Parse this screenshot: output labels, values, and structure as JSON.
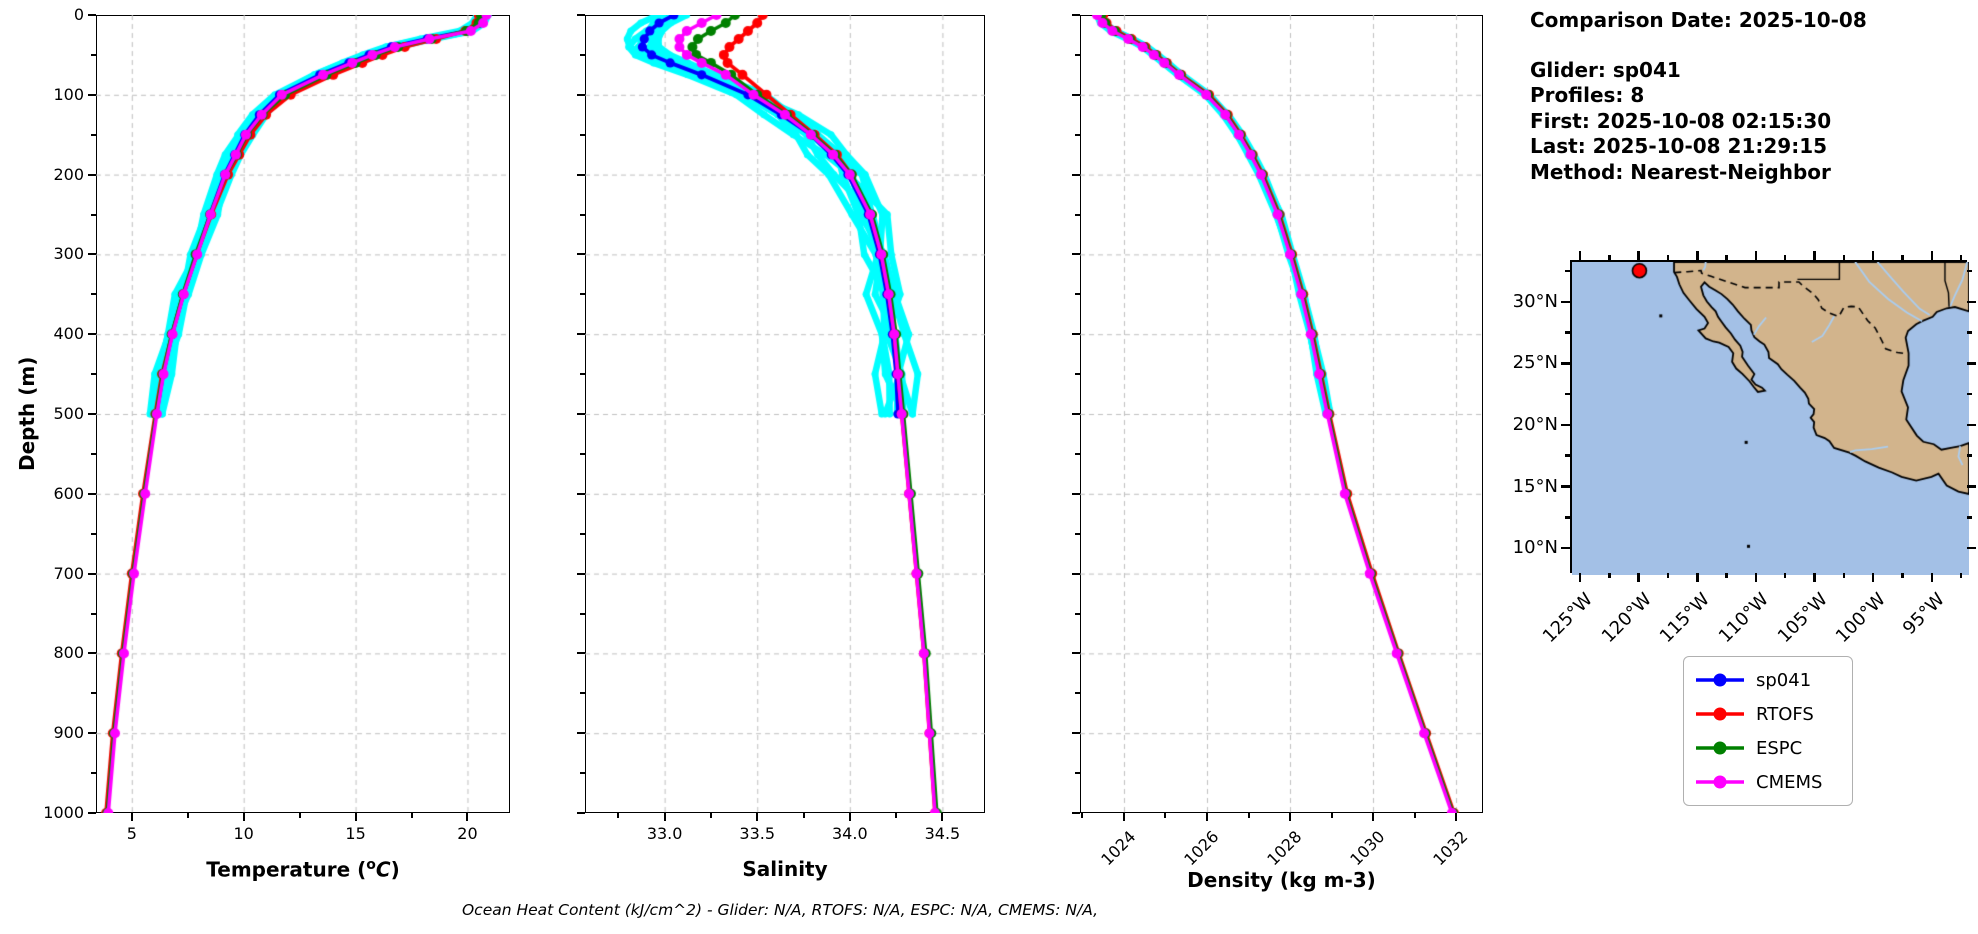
{
  "info": {
    "comparison_date": "Comparison Date: 2025-10-08",
    "glider": "Glider: sp041",
    "profiles": "Profiles: 8",
    "first": "First: 2025-10-08 02:15:30",
    "last": "Last: 2025-10-08 21:29:15",
    "method": "Method: Nearest-Neighbor"
  },
  "footnote": "Ocean Heat Content (kJ/cm^2) - Glider: N/A,  RTOFS: N/A,  ESPC: N/A,  CMEMS: N/A,",
  "legend": {
    "entries": [
      {
        "label": "sp041",
        "color": "#0000ff"
      },
      {
        "label": "RTOFS",
        "color": "#ff0000"
      },
      {
        "label": "ESPC",
        "color": "#008000"
      },
      {
        "label": "CMEMS",
        "color": "#ff00ff"
      }
    ]
  },
  "chart_data": {
    "type": "line",
    "ylabel": "Depth (m)",
    "ylim": [
      0,
      1000
    ],
    "y_inverted": true,
    "depth_ticks": [
      0,
      100,
      200,
      300,
      400,
      500,
      600,
      700,
      800,
      900,
      1000
    ],
    "depth_minor_step": 50,
    "grid": true,
    "raw_profiles": {
      "color": "#00ffff",
      "count": 8,
      "max_depth": 500
    },
    "depths_glider": [
      0,
      10,
      20,
      30,
      40,
      50,
      60,
      75,
      100,
      125,
      150,
      175,
      200,
      250,
      300,
      350,
      400,
      450,
      500
    ],
    "depths_model": [
      0,
      10,
      20,
      30,
      40,
      50,
      60,
      75,
      100,
      125,
      150,
      175,
      200,
      250,
      300,
      350,
      400,
      450,
      500,
      600,
      700,
      800,
      900,
      1000
    ],
    "series_colors": {
      "sp041": "#0000ff",
      "RTOFS": "#ff0000",
      "ESPC": "#008000",
      "CMEMS": "#ff00ff"
    },
    "panels": [
      {
        "key": "temperature",
        "xlabel_parts": {
          "prefix": "Temperature (",
          "sup": "o",
          "italic": "C",
          "suffix": ")"
        },
        "xlabel": "Temperature (°C)",
        "xlim": [
          3.4,
          21.9
        ],
        "xticks": [
          5,
          10,
          15,
          20
        ],
        "xtick_labels": [
          "5",
          "10",
          "15",
          "20"
        ],
        "minor_step": 2.5,
        "rotate_xticklabels": false,
        "series": {
          "sp041": [
            20.7,
            20.55,
            20.0,
            18.2,
            16.6,
            15.6,
            14.7,
            13.4,
            11.6,
            10.7,
            10.05,
            9.6,
            9.15,
            8.5,
            7.9,
            7.3,
            6.8,
            6.4,
            6.1
          ],
          "RTOFS": [
            20.5,
            20.4,
            19.9,
            18.6,
            17.2,
            16.2,
            15.3,
            14.0,
            12.1,
            11.0,
            10.3,
            9.8,
            9.3,
            8.55,
            7.9,
            7.3,
            6.8,
            6.35,
            6.05,
            5.5,
            5.0,
            4.55,
            4.15,
            3.85
          ],
          "ESPC": [
            20.6,
            20.5,
            19.95,
            18.4,
            16.9,
            15.9,
            15.0,
            13.7,
            11.85,
            10.85,
            10.15,
            9.7,
            9.2,
            8.5,
            7.85,
            7.28,
            6.78,
            6.38,
            6.08,
            5.55,
            5.05,
            4.6,
            4.2,
            3.9
          ],
          "CMEMS": [
            20.85,
            20.7,
            20.15,
            18.3,
            16.75,
            15.75,
            14.85,
            13.55,
            11.7,
            10.8,
            10.1,
            9.65,
            9.18,
            8.52,
            7.92,
            7.32,
            6.82,
            6.42,
            6.12,
            5.6,
            5.1,
            4.65,
            4.25,
            3.95
          ]
        }
      },
      {
        "key": "salinity",
        "xlabel": "Salinity",
        "xlim": [
          32.57,
          34.73
        ],
        "xticks": [
          33.0,
          33.5,
          34.0,
          34.5
        ],
        "xtick_labels": [
          "33.0",
          "33.5",
          "34.0",
          "34.5"
        ],
        "minor_step": 0.25,
        "rotate_xticklabels": false,
        "series": {
          "sp041": [
            33.05,
            32.97,
            32.92,
            32.89,
            32.88,
            32.93,
            33.03,
            33.2,
            33.45,
            33.63,
            33.79,
            33.9,
            33.99,
            34.1,
            34.16,
            34.2,
            34.23,
            34.25,
            34.26
          ],
          "RTOFS": [
            33.53,
            33.5,
            33.45,
            33.4,
            33.35,
            33.32,
            33.34,
            33.42,
            33.55,
            33.68,
            33.81,
            33.93,
            34.01,
            34.11,
            34.17,
            34.21,
            34.24,
            34.26,
            34.28,
            34.32,
            34.36,
            34.4,
            34.43,
            34.46
          ],
          "ESPC": [
            33.38,
            33.33,
            33.25,
            33.18,
            33.15,
            33.17,
            33.25,
            33.36,
            33.5,
            33.66,
            33.8,
            33.92,
            34.01,
            34.12,
            34.18,
            34.22,
            34.25,
            34.27,
            34.29,
            34.33,
            34.37,
            34.41,
            34.44,
            34.47
          ],
          "CMEMS": [
            33.28,
            33.2,
            33.12,
            33.08,
            33.08,
            33.12,
            33.2,
            33.33,
            33.48,
            33.65,
            33.79,
            33.91,
            34.0,
            34.11,
            34.17,
            34.21,
            34.24,
            34.26,
            34.28,
            34.32,
            34.36,
            34.4,
            34.43,
            34.46
          ]
        }
      },
      {
        "key": "density",
        "xlabel": "Density (kg m-3)",
        "xlim": [
          1022.94,
          1032.65
        ],
        "xticks": [
          1024,
          1026,
          1028,
          1030,
          1032
        ],
        "xtick_labels": [
          "1024",
          "1026",
          "1028",
          "1030",
          "1032"
        ],
        "minor_step": 1,
        "rotate_xticklabels": true,
        "series": {
          "sp041": [
            1023.4,
            1023.5,
            1023.75,
            1024.15,
            1024.5,
            1024.75,
            1025.0,
            1025.35,
            1026.0,
            1026.45,
            1026.78,
            1027.08,
            1027.32,
            1027.72,
            1028.02,
            1028.3,
            1028.52,
            1028.72,
            1028.92
          ],
          "RTOFS": [
            1023.5,
            1023.58,
            1023.82,
            1024.18,
            1024.52,
            1024.78,
            1025.03,
            1025.38,
            1026.05,
            1026.5,
            1026.82,
            1027.1,
            1027.35,
            1027.75,
            1028.05,
            1028.32,
            1028.55,
            1028.75,
            1028.95,
            1029.38,
            1029.98,
            1030.62,
            1031.28,
            1031.95
          ],
          "ESPC": [
            1023.45,
            1023.55,
            1023.78,
            1024.14,
            1024.48,
            1024.76,
            1025.0,
            1025.36,
            1026.02,
            1026.47,
            1026.8,
            1027.08,
            1027.33,
            1027.73,
            1028.03,
            1028.3,
            1028.53,
            1028.73,
            1028.93,
            1029.35,
            1029.95,
            1030.6,
            1031.26,
            1031.93
          ],
          "CMEMS": [
            1023.35,
            1023.48,
            1023.72,
            1024.1,
            1024.45,
            1024.72,
            1024.97,
            1025.33,
            1025.98,
            1026.44,
            1026.77,
            1027.05,
            1027.3,
            1027.7,
            1028.0,
            1028.27,
            1028.5,
            1028.7,
            1028.9,
            1029.32,
            1029.92,
            1030.57,
            1031.23,
            1031.9
          ]
        }
      }
    ]
  },
  "map": {
    "extent": {
      "lon_min": -125.85,
      "lon_max": -92.0,
      "lat_min": 7.97,
      "lat_max": 33.41
    },
    "xticks": [
      {
        "lon": -125,
        "label": "125°W"
      },
      {
        "lon": -120,
        "label": "120°W"
      },
      {
        "lon": -115,
        "label": "115°W"
      },
      {
        "lon": -110,
        "label": "110°W"
      },
      {
        "lon": -105,
        "label": "105°W"
      },
      {
        "lon": -100,
        "label": "100°W"
      },
      {
        "lon": -95,
        "label": "95°W"
      }
    ],
    "yticks": [
      {
        "lat": 30,
        "label": "30°N"
      },
      {
        "lat": 25,
        "label": "25°N"
      },
      {
        "lat": 20,
        "label": "20°N"
      },
      {
        "lat": 15,
        "label": "15°N"
      },
      {
        "lat": 10,
        "label": "10°N"
      }
    ],
    "land_color": "#d2b48c",
    "ocean_color": "#a3c0e6",
    "river_color": "#aacdf0",
    "glider_location": {
      "lon": -120.1,
      "lat": 32.7,
      "color": "#ff0000"
    },
    "land_polygon": [
      [
        -117.15,
        33.41
      ],
      [
        -92.0,
        33.41
      ],
      [
        -92.0,
        29.4
      ],
      [
        -93.2,
        29.75
      ],
      [
        -93.9,
        29.65
      ],
      [
        -94.75,
        29.35
      ],
      [
        -95.1,
        28.95
      ],
      [
        -96.0,
        28.6
      ],
      [
        -96.5,
        28.35
      ],
      [
        -97.2,
        27.8
      ],
      [
        -97.4,
        27.25
      ],
      [
        -97.15,
        26.0
      ],
      [
        -97.15,
        25.0
      ],
      [
        -97.6,
        23.8
      ],
      [
        -97.75,
        22.9
      ],
      [
        -97.2,
        21.6
      ],
      [
        -97.35,
        20.6
      ],
      [
        -96.45,
        19.3
      ],
      [
        -95.9,
        18.8
      ],
      [
        -95.0,
        18.6
      ],
      [
        -94.35,
        18.15
      ],
      [
        -93.55,
        18.3
      ],
      [
        -92.75,
        18.45
      ],
      [
        -92.0,
        18.7
      ],
      [
        -92.0,
        14.55
      ],
      [
        -92.9,
        14.75
      ],
      [
        -93.9,
        15.25
      ],
      [
        -94.6,
        16.2
      ],
      [
        -95.2,
        15.95
      ],
      [
        -96.5,
        15.65
      ],
      [
        -97.75,
        15.95
      ],
      [
        -98.55,
        16.3
      ],
      [
        -99.7,
        16.7
      ],
      [
        -100.85,
        17.2
      ],
      [
        -101.65,
        17.65
      ],
      [
        -102.2,
        17.92
      ],
      [
        -103.5,
        18.3
      ],
      [
        -103.9,
        18.85
      ],
      [
        -104.3,
        19.1
      ],
      [
        -105.0,
        19.35
      ],
      [
        -105.25,
        19.95
      ],
      [
        -105.2,
        20.4
      ],
      [
        -105.5,
        20.75
      ],
      [
        -105.25,
        21.05
      ],
      [
        -105.2,
        21.45
      ],
      [
        -105.65,
        21.9
      ],
      [
        -105.7,
        22.3
      ],
      [
        -106.0,
        22.8
      ],
      [
        -106.4,
        23.2
      ],
      [
        -106.9,
        23.75
      ],
      [
        -107.5,
        24.25
      ],
      [
        -108.0,
        24.7
      ],
      [
        -108.3,
        25.1
      ],
      [
        -109.05,
        25.6
      ],
      [
        -109.1,
        26.1
      ],
      [
        -109.45,
        26.7
      ],
      [
        -109.85,
        26.95
      ],
      [
        -110.3,
        27.3
      ],
      [
        -110.55,
        27.85
      ],
      [
        -110.6,
        28.3
      ],
      [
        -111.15,
        28.8
      ],
      [
        -111.7,
        29.4
      ],
      [
        -112.15,
        29.95
      ],
      [
        -112.6,
        30.4
      ],
      [
        -113.1,
        30.8
      ],
      [
        -113.6,
        31.1
      ],
      [
        -114.15,
        31.4
      ],
      [
        -114.55,
        31.75
      ],
      [
        -114.85,
        31.4
      ],
      [
        -114.65,
        30.7
      ],
      [
        -114.35,
        30.2
      ],
      [
        -113.95,
        29.75
      ],
      [
        -113.6,
        29.4
      ],
      [
        -113.4,
        28.95
      ],
      [
        -113.1,
        28.55
      ],
      [
        -112.75,
        28.1
      ],
      [
        -112.3,
        27.6
      ],
      [
        -111.95,
        27.1
      ],
      [
        -111.5,
        26.6
      ],
      [
        -111.3,
        26.1
      ],
      [
        -111.35,
        25.7
      ],
      [
        -110.85,
        25.0
      ],
      [
        -110.3,
        24.3
      ],
      [
        -110.55,
        23.85
      ],
      [
        -110.2,
        23.45
      ],
      [
        -109.65,
        23.2
      ],
      [
        -109.4,
        22.95
      ],
      [
        -110.0,
        22.85
      ],
      [
        -110.35,
        23.25
      ],
      [
        -110.7,
        23.7
      ],
      [
        -111.3,
        24.3
      ],
      [
        -111.85,
        24.75
      ],
      [
        -112.2,
        25.3
      ],
      [
        -112.1,
        26.0
      ],
      [
        -112.5,
        26.5
      ],
      [
        -113.3,
        26.85
      ],
      [
        -113.8,
        26.95
      ],
      [
        -114.45,
        27.2
      ],
      [
        -115.07,
        27.85
      ],
      [
        -114.55,
        28.0
      ],
      [
        -114.25,
        28.45
      ],
      [
        -114.55,
        28.95
      ],
      [
        -115.25,
        29.6
      ],
      [
        -115.85,
        30.3
      ],
      [
        -116.35,
        30.9
      ],
      [
        -116.7,
        31.6
      ],
      [
        -116.9,
        32.2
      ],
      [
        -117.15,
        32.6
      ]
    ],
    "border_dashed": [
      [
        -117.13,
        32.55
      ],
      [
        -116.0,
        32.62
      ],
      [
        -114.85,
        32.72
      ],
      [
        -114.8,
        32.5
      ],
      [
        -114.0,
        32.25
      ],
      [
        -111.1,
        31.33
      ],
      [
        -108.2,
        31.33
      ],
      [
        -108.2,
        31.78
      ],
      [
        -106.5,
        31.78
      ],
      [
        -106.15,
        31.45
      ],
      [
        -105.3,
        30.85
      ],
      [
        -104.85,
        30.35
      ],
      [
        -104.55,
        29.65
      ],
      [
        -103.9,
        29.25
      ],
      [
        -103.1,
        28.98
      ],
      [
        -102.65,
        29.75
      ],
      [
        -102.05,
        29.8
      ],
      [
        -101.45,
        29.77
      ],
      [
        -100.65,
        28.65
      ],
      [
        -100.0,
        28.05
      ],
      [
        -99.45,
        27.05
      ],
      [
        -99.1,
        26.35
      ],
      [
        -98.1,
        26.05
      ],
      [
        -97.35,
        25.95
      ]
    ],
    "state_lines": [
      [
        [
          -103.05,
          33.41
        ],
        [
          -103.05,
          32.0
        ],
        [
          -106.63,
          32.0
        ]
      ],
      [
        [
          -94.05,
          33.41
        ],
        [
          -94.05,
          31.9
        ],
        [
          -93.75,
          30.9
        ],
        [
          -93.7,
          29.77
        ]
      ]
    ],
    "rivers": [
      [
        [
          -114.45,
          33.41
        ],
        [
          -114.5,
          33.0
        ],
        [
          -114.65,
          32.74
        ]
      ],
      [
        [
          -99.8,
          33.41
        ],
        [
          -98.8,
          32.3
        ],
        [
          -97.6,
          31.0
        ],
        [
          -96.2,
          29.6
        ],
        [
          -95.35,
          29.1
        ]
      ],
      [
        [
          -101.7,
          33.41
        ],
        [
          -100.5,
          31.8
        ],
        [
          -98.9,
          30.4
        ],
        [
          -97.3,
          29.3
        ],
        [
          -96.0,
          28.6
        ]
      ],
      [
        [
          -105.4,
          26.9
        ],
        [
          -104.5,
          27.4
        ],
        [
          -103.9,
          28.3
        ],
        [
          -103.5,
          29.0
        ]
      ],
      [
        [
          -98.9,
          18.4
        ],
        [
          -100.3,
          18.2
        ],
        [
          -101.7,
          18.1
        ],
        [
          -102.15,
          17.95
        ]
      ],
      [
        [
          -92.55,
          16.9
        ],
        [
          -92.9,
          17.6
        ],
        [
          -92.75,
          18.45
        ]
      ],
      [
        [
          -109.3,
          28.9
        ],
        [
          -109.9,
          28.2
        ],
        [
          -110.35,
          27.5
        ]
      ],
      [
        [
          -92.15,
          33.41
        ],
        [
          -92.55,
          32.0
        ],
        [
          -93.2,
          30.7
        ],
        [
          -93.6,
          29.8
        ]
      ]
    ],
    "islands": [
      [
        -118.28,
        29.03
      ],
      [
        -111.0,
        18.75
      ],
      [
        -110.8,
        10.3
      ]
    ]
  }
}
